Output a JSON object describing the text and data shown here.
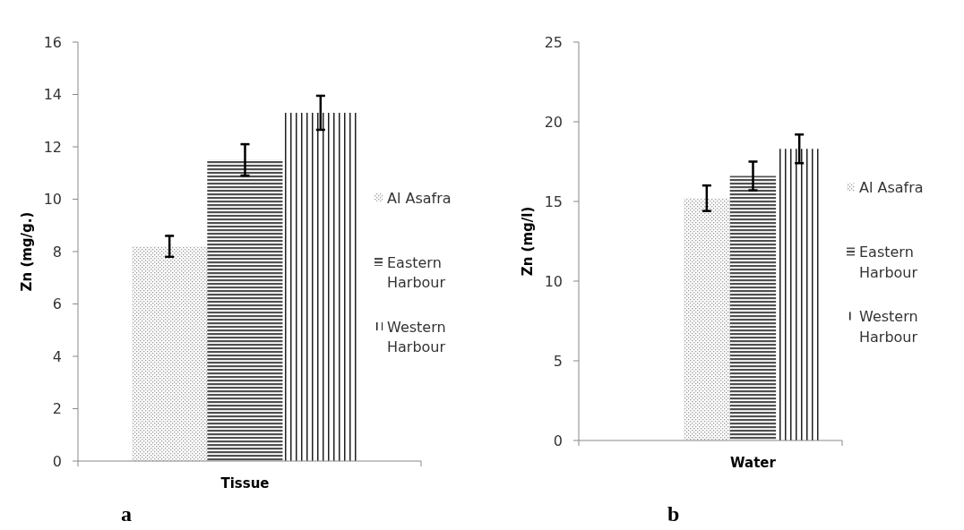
{
  "chart_data": [
    {
      "type": "bar",
      "categories": [
        "Tissue"
      ],
      "ylabel": "Zn (mg/g.)",
      "ylim": [
        0,
        16
      ],
      "yticks": [
        0,
        2,
        4,
        6,
        8,
        10,
        12,
        14,
        16
      ],
      "legend": "right",
      "annotations": [
        "a"
      ],
      "series": [
        {
          "name": "Al Asafra",
          "color": "#9a9a9a",
          "values": [
            8.2
          ],
          "errors": [
            0.4
          ]
        },
        {
          "name": "Eastern Harbour",
          "color": "#505050",
          "values": [
            11.5
          ],
          "errors": [
            0.6
          ]
        },
        {
          "name": "Western Harbour",
          "color": "#202020",
          "values": [
            13.3
          ],
          "errors": [
            0.65
          ]
        }
      ]
    },
    {
      "type": "bar",
      "categories": [
        "Water"
      ],
      "ylabel": "Zn (mg/l)",
      "ylim": [
        0,
        25
      ],
      "yticks": [
        0,
        5,
        10,
        15,
        20,
        25
      ],
      "legend": "right",
      "annotations": [
        "b"
      ],
      "series": [
        {
          "name": "Al Asafra",
          "color": "#9a9a9a",
          "values": [
            15.2
          ],
          "errors": [
            0.8
          ]
        },
        {
          "name": "Eastern Harbour",
          "color": "#505050",
          "values": [
            16.6
          ],
          "errors": [
            0.9
          ]
        },
        {
          "name": "Western Harbour",
          "color": "#202020",
          "values": [
            18.3
          ],
          "errors": [
            0.9
          ]
        }
      ]
    }
  ]
}
